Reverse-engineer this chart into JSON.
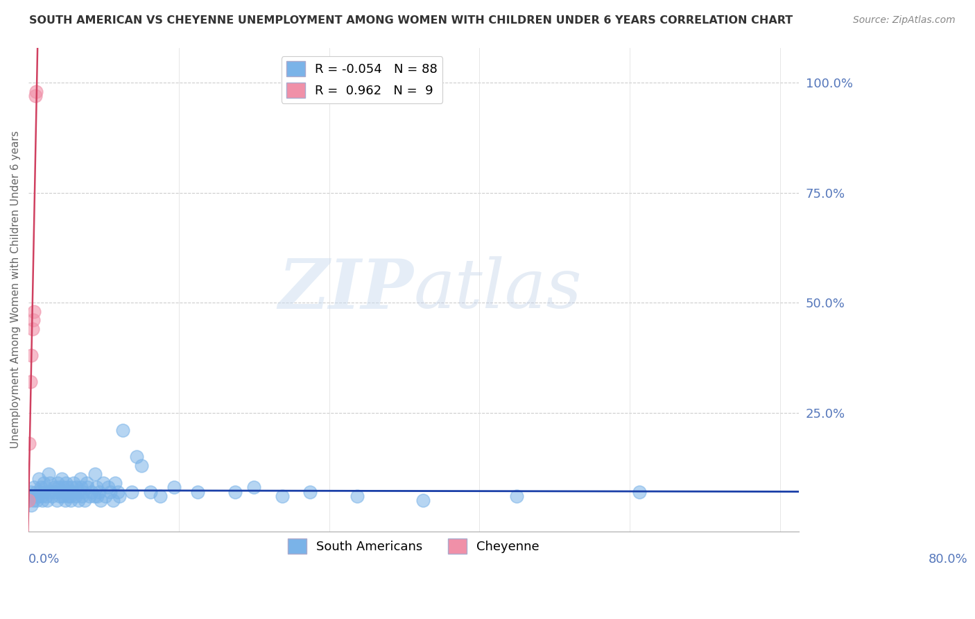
{
  "title": "SOUTH AMERICAN VS CHEYENNE UNEMPLOYMENT AMONG WOMEN WITH CHILDREN UNDER 6 YEARS CORRELATION CHART",
  "source": "Source: ZipAtlas.com",
  "ylabel": "Unemployment Among Women with Children Under 6 years",
  "watermark": "ZIPatlas",
  "south_american_color": "#7ab3e8",
  "cheyenne_color": "#f090a8",
  "trendline_sa_color": "#1a3fa8",
  "trendline_ch_color": "#d04060",
  "background_color": "#ffffff",
  "grid_color": "#cccccc",
  "title_color": "#333333",
  "source_color": "#888888",
  "axis_label_color": "#5577bb",
  "xlim": [
    0.0,
    0.82
  ],
  "ylim": [
    -0.02,
    1.08
  ],
  "sa_x": [
    0.0,
    0.001,
    0.002,
    0.003,
    0.005,
    0.006,
    0.007,
    0.008,
    0.009,
    0.01,
    0.011,
    0.012,
    0.013,
    0.014,
    0.015,
    0.016,
    0.017,
    0.018,
    0.019,
    0.02,
    0.021,
    0.022,
    0.023,
    0.025,
    0.027,
    0.028,
    0.03,
    0.031,
    0.032,
    0.033,
    0.034,
    0.035,
    0.036,
    0.037,
    0.038,
    0.039,
    0.04,
    0.041,
    0.042,
    0.043,
    0.044,
    0.045,
    0.046,
    0.047,
    0.048,
    0.05,
    0.051,
    0.052,
    0.053,
    0.055,
    0.056,
    0.057,
    0.058,
    0.06,
    0.062,
    0.063,
    0.065,
    0.067,
    0.07,
    0.071,
    0.072,
    0.073,
    0.075,
    0.077,
    0.08,
    0.082,
    0.085,
    0.087,
    0.09,
    0.092,
    0.095,
    0.097,
    0.1,
    0.11,
    0.115,
    0.12,
    0.13,
    0.14,
    0.155,
    0.18,
    0.22,
    0.24,
    0.27,
    0.3,
    0.35,
    0.42,
    0.52,
    0.65
  ],
  "sa_y": [
    0.05,
    0.06,
    0.07,
    0.04,
    0.05,
    0.08,
    0.06,
    0.07,
    0.05,
    0.06,
    0.1,
    0.07,
    0.08,
    0.06,
    0.05,
    0.09,
    0.07,
    0.08,
    0.06,
    0.05,
    0.11,
    0.07,
    0.09,
    0.06,
    0.08,
    0.07,
    0.05,
    0.09,
    0.08,
    0.06,
    0.07,
    0.1,
    0.06,
    0.08,
    0.07,
    0.05,
    0.09,
    0.08,
    0.06,
    0.07,
    0.06,
    0.05,
    0.08,
    0.07,
    0.09,
    0.06,
    0.08,
    0.07,
    0.05,
    0.1,
    0.08,
    0.06,
    0.07,
    0.05,
    0.09,
    0.08,
    0.06,
    0.07,
    0.06,
    0.11,
    0.08,
    0.06,
    0.07,
    0.05,
    0.09,
    0.06,
    0.08,
    0.07,
    0.05,
    0.09,
    0.07,
    0.06,
    0.21,
    0.07,
    0.15,
    0.13,
    0.07,
    0.06,
    0.08,
    0.07,
    0.07,
    0.08,
    0.06,
    0.07,
    0.06,
    0.05,
    0.06,
    0.07
  ],
  "ch_x": [
    0.0,
    0.001,
    0.002,
    0.003,
    0.004,
    0.005,
    0.006,
    0.007,
    0.008
  ],
  "ch_y": [
    0.05,
    0.18,
    0.32,
    0.38,
    0.44,
    0.46,
    0.48,
    0.97,
    0.98
  ]
}
